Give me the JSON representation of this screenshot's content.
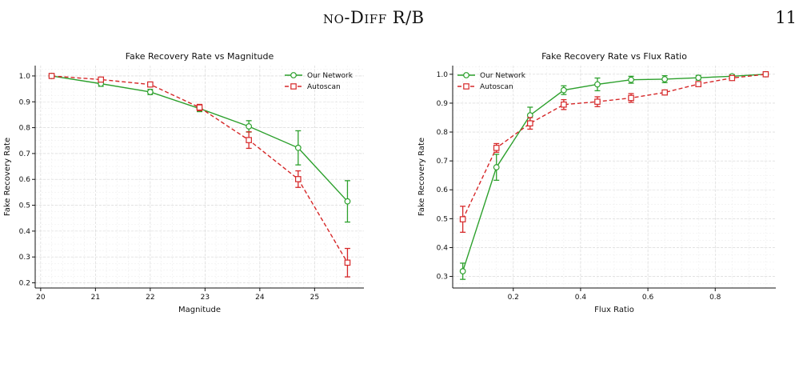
{
  "header": {
    "running_title_sc": "no-Diff",
    "running_title_rest": " R/B",
    "page_number": "11"
  },
  "chart_data": [
    {
      "type": "line",
      "title": "Fake Recovery Rate vs Magnitude",
      "xlabel": "Magnitude",
      "ylabel": "Fake Recovery Rate",
      "xlim": [
        19.9,
        25.9
      ],
      "ylim": [
        0.18,
        1.04
      ],
      "xticks": [
        20,
        21,
        22,
        23,
        24,
        25
      ],
      "yticks": [
        0.2,
        0.3,
        0.4,
        0.5,
        0.6,
        0.7,
        0.8,
        0.9,
        1.0
      ],
      "grid": true,
      "legend_position": "top-right",
      "x": [
        20.2,
        21.1,
        22.0,
        22.9,
        23.8,
        24.7,
        25.6
      ],
      "series": [
        {
          "name": "Our Network",
          "color": "#2ca02c",
          "marker": "circle",
          "linestyle": "solid",
          "values": [
            1.0,
            0.97,
            0.938,
            0.874,
            0.805,
            0.722,
            0.515
          ],
          "errors": [
            0.003,
            0.01,
            0.01,
            0.012,
            0.022,
            0.066,
            0.08
          ]
        },
        {
          "name": "Autoscan",
          "color": "#d62728",
          "marker": "square",
          "linestyle": "dashed",
          "values": [
            1.0,
            0.986,
            0.967,
            0.878,
            0.752,
            0.601,
            0.278
          ],
          "errors": [
            0.003,
            0.008,
            0.008,
            0.012,
            0.032,
            0.032,
            0.055
          ]
        }
      ]
    },
    {
      "type": "line",
      "title": "Fake Recovery Rate vs Flux Ratio",
      "xlabel": "Flux Ratio",
      "ylabel": "Fake Recovery Rate",
      "xlim": [
        0.02,
        0.98
      ],
      "ylim": [
        0.26,
        1.03
      ],
      "xticks": [
        0.2,
        0.4,
        0.6,
        0.8
      ],
      "yticks": [
        0.3,
        0.4,
        0.5,
        0.6,
        0.7,
        0.8,
        0.9,
        1.0
      ],
      "grid": true,
      "legend_position": "top-left",
      "x": [
        0.05,
        0.15,
        0.25,
        0.35,
        0.45,
        0.55,
        0.65,
        0.75,
        0.85,
        0.95
      ],
      "series": [
        {
          "name": "Our Network",
          "color": "#2ca02c",
          "marker": "circle",
          "linestyle": "solid",
          "values": [
            0.318,
            0.678,
            0.858,
            0.945,
            0.965,
            0.981,
            0.983,
            0.988,
            0.993,
            1.0
          ],
          "errors": [
            0.028,
            0.045,
            0.028,
            0.015,
            0.022,
            0.012,
            0.012,
            0.008,
            0.006,
            0.003
          ]
        },
        {
          "name": "Autoscan",
          "color": "#d62728",
          "marker": "square",
          "linestyle": "dashed",
          "values": [
            0.498,
            0.745,
            0.83,
            0.895,
            0.905,
            0.918,
            0.937,
            0.966,
            0.987,
            1.0
          ],
          "errors": [
            0.045,
            0.015,
            0.02,
            0.017,
            0.017,
            0.015,
            0.008,
            0.008,
            0.006,
            0.003
          ]
        }
      ]
    }
  ]
}
